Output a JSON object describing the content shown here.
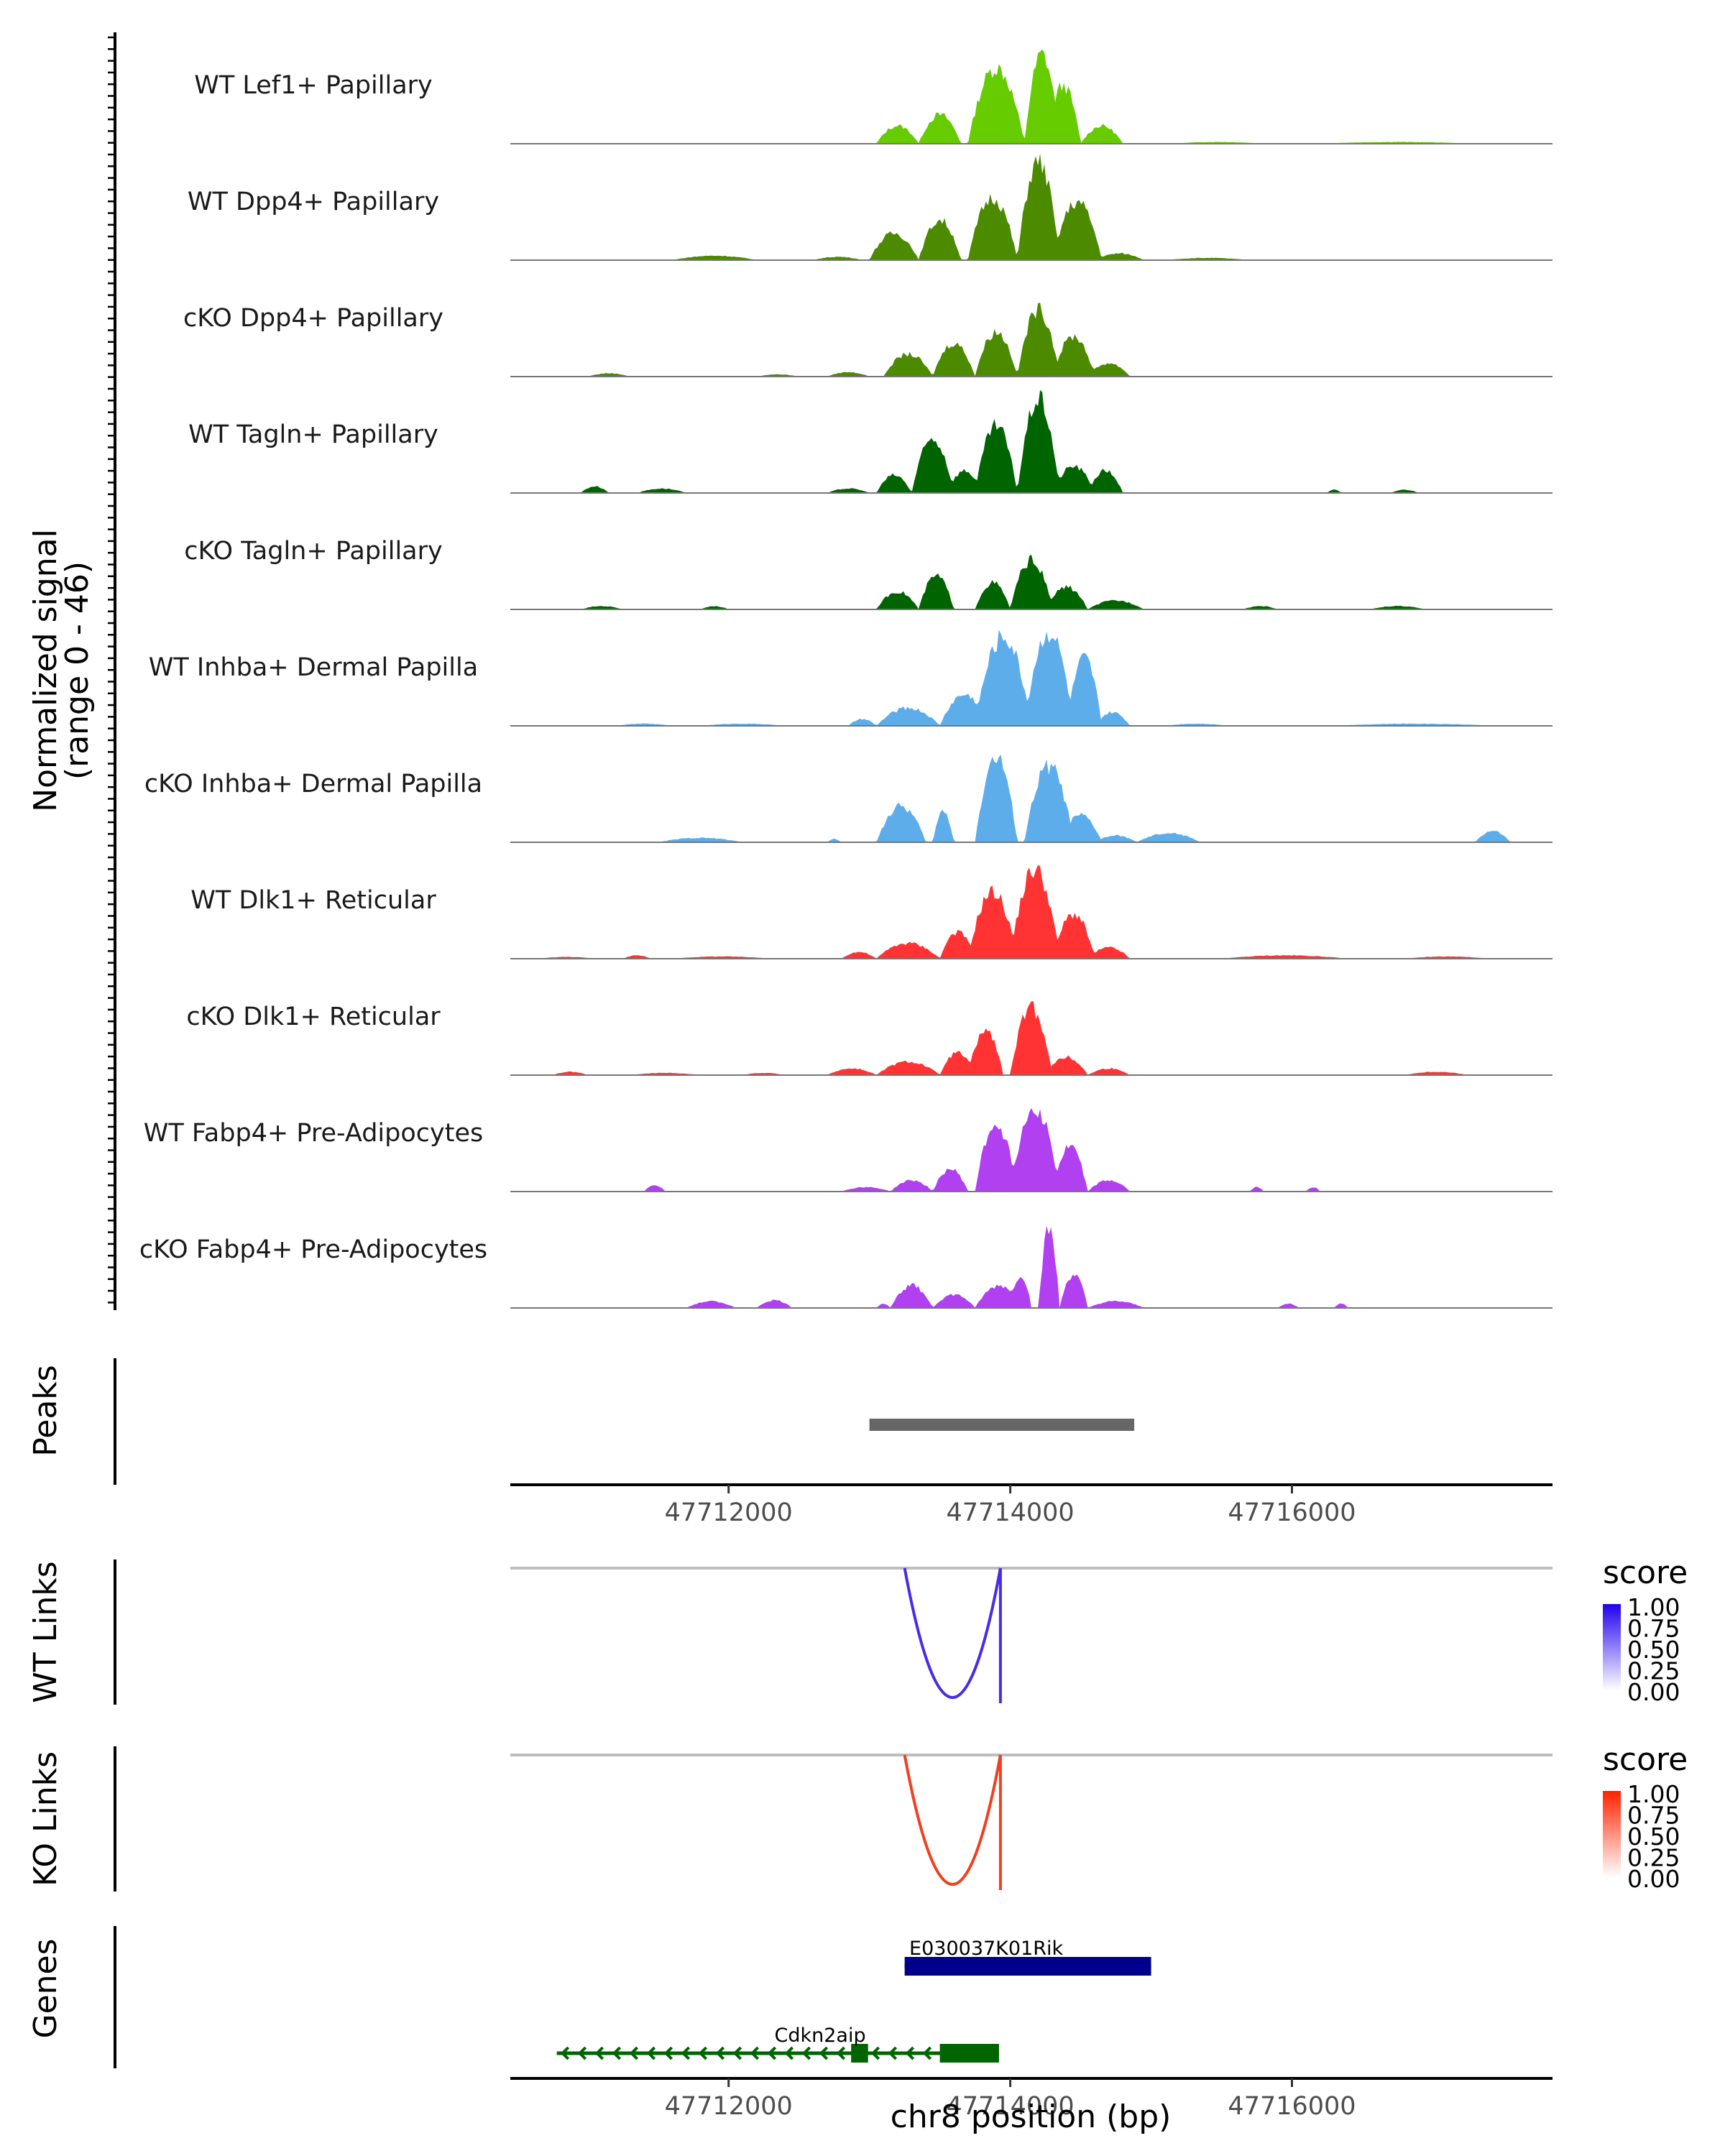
{
  "chart_data": {
    "type": "area",
    "region": "chr8",
    "x_axis": {
      "label": "chr8 position (bp)",
      "range": [
        47710450,
        47717850
      ],
      "ticks": [
        47712000,
        47714000,
        47716000
      ],
      "tick_labels": [
        "47712000",
        "47714000",
        "47716000"
      ]
    },
    "coverage": {
      "ylabel_line1": "Normalized signal",
      "ylabel_line2": "(range 0 - 46)",
      "y_range": [
        0,
        46
      ],
      "tracks": [
        {
          "name": "WT Lef1+ Papillary",
          "color": "#66CC00",
          "peaks": [
            [
              47713050,
              47713350,
              8
            ],
            [
              47713350,
              47713650,
              13
            ],
            [
              47713700,
              47714100,
              34
            ],
            [
              47714100,
              47714350,
              40
            ],
            [
              47714250,
              47714500,
              26
            ],
            [
              47714500,
              47714800,
              8
            ],
            [
              47715150,
              47715800,
              0.8
            ],
            [
              47716200,
              47717300,
              0.8
            ]
          ]
        },
        {
          "name": "WT Dpp4+ Papillary",
          "color": "#4C8A00",
          "peaks": [
            [
              47711600,
              47712200,
              2
            ],
            [
              47712600,
              47712950,
              1.5
            ],
            [
              47713000,
              47713350,
              12
            ],
            [
              47713350,
              47713650,
              18
            ],
            [
              47713700,
              47714050,
              28
            ],
            [
              47714050,
              47714350,
              44
            ],
            [
              47714300,
              47714650,
              26
            ],
            [
              47714600,
              47714950,
              3
            ],
            [
              47715100,
              47715700,
              1
            ]
          ]
        },
        {
          "name": "cKO Dpp4+ Papillary",
          "color": "#4C8A00",
          "peaks": [
            [
              47711000,
              47711300,
              1.5
            ],
            [
              47712200,
              47712500,
              1
            ],
            [
              47712700,
              47713000,
              2
            ],
            [
              47713100,
              47713450,
              10
            ],
            [
              47713450,
              47713750,
              15
            ],
            [
              47713750,
              47714050,
              20
            ],
            [
              47714050,
              47714350,
              30
            ],
            [
              47714300,
              47714600,
              18
            ],
            [
              47714550,
              47714850,
              6
            ]
          ]
        },
        {
          "name": "WT Tagln+ Papillary",
          "color": "#006400",
          "peaks": [
            [
              47710950,
              47711150,
              3
            ],
            [
              47711350,
              47711700,
              2
            ],
            [
              47712700,
              47713000,
              2
            ],
            [
              47713050,
              47713300,
              8
            ],
            [
              47713300,
              47713600,
              24
            ],
            [
              47713550,
              47713800,
              10
            ],
            [
              47713750,
              47714050,
              30
            ],
            [
              47714050,
              47714350,
              42
            ],
            [
              47714300,
              47714600,
              12
            ],
            [
              47714550,
              47714800,
              10
            ],
            [
              47716250,
              47716350,
              1.5
            ],
            [
              47716700,
              47716900,
              1.5
            ]
          ]
        },
        {
          "name": "cKO Tagln+ Papillary",
          "color": "#006400",
          "peaks": [
            [
              47710950,
              47711250,
              1.5
            ],
            [
              47711800,
              47712000,
              1.5
            ],
            [
              47713050,
              47713350,
              8
            ],
            [
              47713350,
              47713600,
              15
            ],
            [
              47713750,
              47714000,
              12
            ],
            [
              47714000,
              47714300,
              22
            ],
            [
              47714250,
              47714550,
              10
            ],
            [
              47714550,
              47714950,
              4
            ],
            [
              47715650,
              47715900,
              1.5
            ],
            [
              47716550,
              47716950,
              1.5
            ]
          ]
        },
        {
          "name": "WT Inhba+ Dermal Papilla",
          "color": "#5DADEA",
          "peaks": [
            [
              47711200,
              47711600,
              1
            ],
            [
              47711800,
              47712400,
              1
            ],
            [
              47712850,
              47713050,
              3
            ],
            [
              47713050,
              47713500,
              8
            ],
            [
              47713500,
              47713850,
              14
            ],
            [
              47713750,
              47714150,
              40
            ],
            [
              47714100,
              47714450,
              42
            ],
            [
              47714400,
              47714650,
              30
            ],
            [
              47714600,
              47714850,
              6
            ],
            [
              47715100,
              47715550,
              1
            ],
            [
              47716300,
              47717450,
              1
            ]
          ]
        },
        {
          "name": "cKO Inhba+ Dermal Papilla",
          "color": "#5DADEA",
          "peaks": [
            [
              47711500,
              47712100,
              2
            ],
            [
              47712700,
              47712800,
              1.5
            ],
            [
              47713050,
              47713400,
              16
            ],
            [
              47713450,
              47713600,
              14
            ],
            [
              47713750,
              47714050,
              38
            ],
            [
              47714100,
              47714450,
              34
            ],
            [
              47714350,
              47714650,
              12
            ],
            [
              47714600,
              47714900,
              3
            ],
            [
              47714900,
              47715350,
              4
            ],
            [
              47717300,
              47717550,
              5
            ]
          ]
        },
        {
          "name": "WT Dlk1+ Reticular",
          "color": "#FF3333",
          "peaks": [
            [
              47710650,
              47711050,
              0.8
            ],
            [
              47711250,
              47711450,
              1.5
            ],
            [
              47711600,
              47712300,
              1
            ],
            [
              47712800,
              47713050,
              3
            ],
            [
              47713050,
              47713500,
              7
            ],
            [
              47713500,
              47713750,
              12
            ],
            [
              47713700,
              47714050,
              30
            ],
            [
              47714000,
              47714350,
              40
            ],
            [
              47714300,
              47714600,
              20
            ],
            [
              47714550,
              47714850,
              5
            ],
            [
              47715500,
              47716400,
              1.5
            ],
            [
              47716800,
              47717400,
              1
            ]
          ]
        },
        {
          "name": "cKO Dlk1+ Reticular",
          "color": "#FF3333",
          "peaks": [
            [
              47710750,
              47711000,
              1.5
            ],
            [
              47711300,
              47711800,
              1
            ],
            [
              47712100,
              47712400,
              1
            ],
            [
              47712700,
              47713050,
              3
            ],
            [
              47713050,
              47713500,
              6
            ],
            [
              47713500,
              47713750,
              10
            ],
            [
              47713700,
              47713950,
              20
            ],
            [
              47714000,
              47714300,
              30
            ],
            [
              47714250,
              47714550,
              8
            ],
            [
              47714550,
              47714850,
              3
            ],
            [
              47716800,
              47717250,
              1.5
            ]
          ]
        },
        {
          "name": "WT Fabp4+ Pre-Adipocytes",
          "color": "#B040F0",
          "peaks": [
            [
              47711400,
              47711550,
              3
            ],
            [
              47712800,
              47713150,
              2
            ],
            [
              47713150,
              47713450,
              5
            ],
            [
              47713450,
              47713700,
              10
            ],
            [
              47713750,
              47714050,
              30
            ],
            [
              47714000,
              47714350,
              38
            ],
            [
              47714300,
              47714550,
              20
            ],
            [
              47714550,
              47714850,
              5
            ],
            [
              47715700,
              47715800,
              2
            ],
            [
              47716100,
              47716200,
              2
            ]
          ]
        },
        {
          "name": "cKO Fabp4+ Pre-Adipocytes",
          "color": "#B040F0",
          "peaks": [
            [
              47711700,
              47712050,
              3
            ],
            [
              47712200,
              47712450,
              3.5
            ],
            [
              47713050,
              47713150,
              2
            ],
            [
              47713150,
              47713450,
              10
            ],
            [
              47713450,
              47713750,
              6
            ],
            [
              47713750,
              47714100,
              10
            ],
            [
              47714000,
              47714150,
              15
            ],
            [
              47714200,
              47714350,
              35
            ],
            [
              47714350,
              47714550,
              15
            ],
            [
              47714550,
              47714950,
              3
            ],
            [
              47715900,
              47716050,
              2
            ],
            [
              47716300,
              47716400,
              2
            ]
          ]
        }
      ]
    },
    "peaks": {
      "label": "Peaks",
      "intervals": [
        [
          47713000,
          47714880
        ]
      ],
      "color": "#666666"
    },
    "links": [
      {
        "label": "WT Links",
        "color": "#4B2AE8",
        "color_low": "#FFFFFF",
        "color_high": "#2200EE",
        "arcs": [
          {
            "start": 47713250,
            "end": 47713930,
            "score": 0.85
          }
        ],
        "legend_title": "score",
        "legend_ticks": [
          "1.00",
          "0.75",
          "0.50",
          "0.25",
          "0.00"
        ]
      },
      {
        "label": "KO Links",
        "color": "#F04020",
        "color_low": "#FFFFFF",
        "color_high": "#FF2200",
        "arcs": [
          {
            "start": 47713250,
            "end": 47713930,
            "score": 0.85
          }
        ],
        "legend_title": "score",
        "legend_ticks": [
          "1.00",
          "0.75",
          "0.50",
          "0.25",
          "0.00"
        ]
      }
    ],
    "genes": {
      "label": "Genes",
      "items": [
        {
          "name": "E030037K01Rik",
          "strand": "+",
          "color": "#00008B",
          "start": 47713250,
          "end": 47715000,
          "exons": [
            [
              47713250,
              47715000
            ]
          ]
        },
        {
          "name": "Cdkn2aip",
          "strand": "-",
          "color": "#006400",
          "start": 47710780,
          "end": 47713920,
          "exons": [
            [
              47712870,
              47712990
            ],
            [
              47713500,
              47713920
            ]
          ]
        }
      ]
    }
  }
}
